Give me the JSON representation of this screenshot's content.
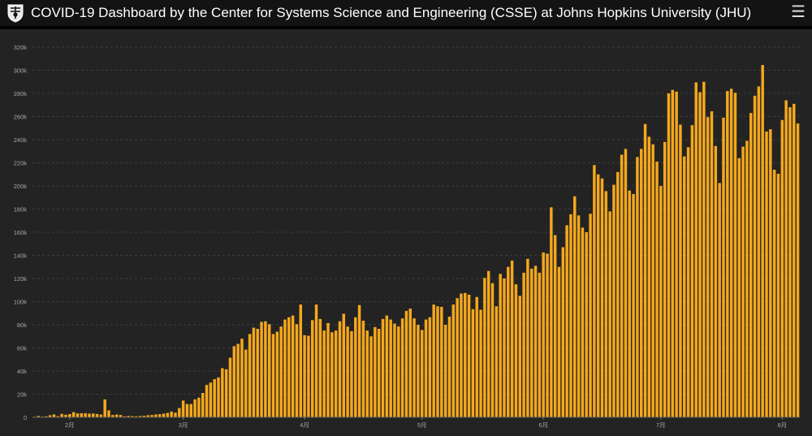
{
  "header": {
    "title": "COVID-19 Dashboard by the Center for Systems Science and Engineering (CSSE) at Johns Hopkins University (JHU)",
    "logo_icon": "jhu-shield-icon",
    "menu_icon": "hamburger-menu-icon"
  },
  "colors": {
    "header_bg": "#131313",
    "panel_bg": "#232323",
    "bar": "#f5a81c",
    "grid": "#3d3d3d",
    "axis_text": "#a8a8a8"
  },
  "chart_data": {
    "type": "bar",
    "title": "",
    "xlabel": "",
    "ylabel": "",
    "ylim": [
      0,
      320000
    ],
    "yticks": [
      0,
      20000,
      40000,
      60000,
      80000,
      100000,
      120000,
      140000,
      160000,
      180000,
      200000,
      220000,
      240000,
      260000,
      280000,
      300000,
      320000
    ],
    "ytick_labels": [
      "0",
      "20k",
      "40k",
      "60k",
      "80k",
      "100k",
      "120k",
      "140k",
      "160k",
      "180k",
      "200k",
      "220k",
      "240k",
      "260k",
      "280k",
      "300k",
      "320k"
    ],
    "xtick_labels": [
      {
        "label": "2月",
        "index": 9
      },
      {
        "label": "3月",
        "index": 38
      },
      {
        "label": "4月",
        "index": 69
      },
      {
        "label": "5月",
        "index": 99
      },
      {
        "label": "6月",
        "index": 130
      },
      {
        "label": "7月",
        "index": 160
      },
      {
        "label": "8月",
        "index": 191
      }
    ],
    "grid": true,
    "values": [
      500,
      1200,
      600,
      900,
      1800,
      2500,
      1000,
      3000,
      2200,
      2800,
      4500,
      3400,
      3500,
      3600,
      3200,
      3300,
      2900,
      2400,
      15500,
      6000,
      2000,
      2400,
      2000,
      800,
      1200,
      1000,
      900,
      1100,
      1300,
      1800,
      2000,
      2500,
      2700,
      3200,
      3800,
      5000,
      4000,
      8000,
      14500,
      11500,
      11500,
      15500,
      17000,
      21000,
      28000,
      30000,
      33000,
      34500,
      42500,
      41500,
      51500,
      61500,
      63500,
      68000,
      58500,
      72000,
      77500,
      76500,
      82500,
      83000,
      80500,
      72000,
      74000,
      78500,
      84500,
      86500,
      88000,
      80500,
      97500,
      71000,
      70500,
      84000,
      97500,
      85000,
      75000,
      81500,
      73500,
      75000,
      83000,
      89500,
      78500,
      74500,
      86500,
      97000,
      83500,
      75000,
      70000,
      78000,
      76500,
      85000,
      88000,
      84500,
      81000,
      78500,
      85500,
      92000,
      94000,
      85500,
      80000,
      75500,
      84500,
      86500,
      97500,
      96000,
      95500,
      80000,
      87000,
      97500,
      103000,
      107000,
      107500,
      106000,
      93500,
      104000,
      93000,
      120500,
      126500,
      116000,
      96000,
      124000,
      120000,
      130000,
      135500,
      115000,
      105000,
      125000,
      137000,
      128500,
      131000,
      125000,
      142500,
      141500,
      181500,
      157500,
      130000,
      147000,
      166000,
      175500,
      191000,
      174500,
      164000,
      160000,
      176000,
      218000,
      210000,
      206500,
      195500,
      178000,
      201000,
      212000,
      227000,
      232000,
      196000,
      193000,
      225000,
      232000,
      253500,
      242500,
      236000,
      221000,
      200000,
      238000,
      280000,
      283000,
      281500,
      253000,
      225500,
      233500,
      252500,
      289500,
      281000,
      290000,
      259500,
      264500,
      234500,
      202500,
      259000,
      282000,
      284000,
      280500,
      224000,
      234000,
      239000,
      263000,
      278000,
      286000,
      304500,
      247000,
      249000,
      214000,
      210500,
      257000,
      274000,
      268000,
      271000,
      254000
    ]
  }
}
